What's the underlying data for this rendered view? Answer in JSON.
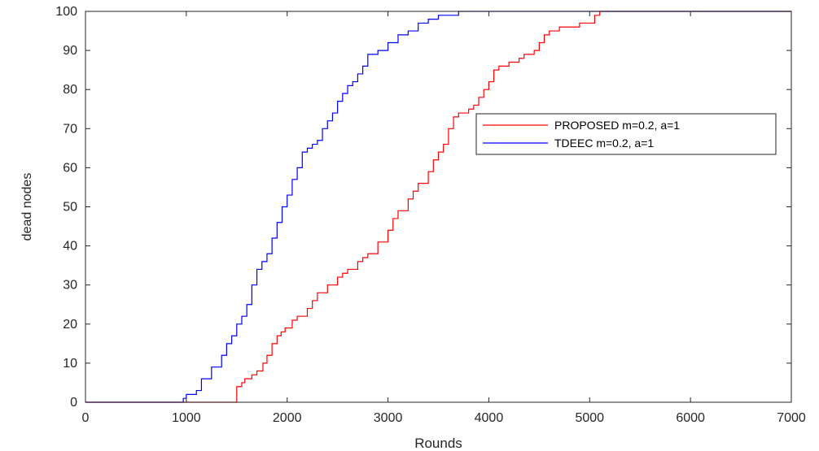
{
  "chart_data": {
    "type": "line",
    "xlabel": "Rounds",
    "ylabel": "dead nodes",
    "xlim": [
      0,
      7000
    ],
    "ylim": [
      0,
      100
    ],
    "xticks": [
      0,
      1000,
      2000,
      3000,
      4000,
      5000,
      6000,
      7000
    ],
    "yticks": [
      0,
      10,
      20,
      30,
      40,
      50,
      60,
      70,
      80,
      90,
      100
    ],
    "grid": false,
    "legend_position": "upper-right",
    "series": [
      {
        "name": "PROPOSED  m=0.2, a=1",
        "color": "#ff0000",
        "x": [
          0,
          1480,
          1500,
          1550,
          1580,
          1650,
          1700,
          1760,
          1800,
          1850,
          1900,
          1940,
          1980,
          2050,
          2100,
          2200,
          2250,
          2300,
          2400,
          2500,
          2550,
          2600,
          2700,
          2750,
          2800,
          2900,
          3000,
          3050,
          3100,
          3200,
          3250,
          3300,
          3400,
          3450,
          3500,
          3550,
          3600,
          3650,
          3700,
          3800,
          3850,
          3900,
          3950,
          4000,
          4050,
          4100,
          4200,
          4300,
          4350,
          4400,
          4450,
          4500,
          4550,
          4600,
          4700,
          4800,
          4900,
          5000,
          5050,
          5100,
          7000
        ],
        "y": [
          0,
          0,
          4,
          5,
          6,
          7,
          8,
          10,
          12,
          15,
          17,
          18,
          19,
          21,
          22,
          24,
          26,
          28,
          30,
          32,
          33,
          34,
          36,
          37,
          38,
          41,
          44,
          47,
          49,
          52,
          54,
          56,
          59,
          62,
          64,
          66,
          70,
          73,
          74,
          75,
          76,
          78,
          80,
          82,
          85,
          86,
          87,
          88,
          89,
          89,
          90,
          92,
          94,
          95,
          96,
          96,
          97,
          97,
          99,
          100,
          100
        ]
      },
      {
        "name": "TDEEC  m=0.2, a=1",
        "color": "#0000ff",
        "x": [
          0,
          950,
          970,
          1000,
          1100,
          1150,
          1250,
          1350,
          1400,
          1450,
          1500,
          1550,
          1600,
          1650,
          1700,
          1750,
          1800,
          1850,
          1900,
          1950,
          2000,
          2050,
          2100,
          2150,
          2200,
          2250,
          2300,
          2350,
          2400,
          2450,
          2500,
          2550,
          2600,
          2650,
          2700,
          2750,
          2800,
          2900,
          3000,
          3100,
          3200,
          3300,
          3400,
          3500,
          3600,
          3700,
          3800,
          7000
        ],
        "y": [
          0,
          0,
          1,
          2,
          3,
          6,
          9,
          12,
          15,
          17,
          20,
          22,
          25,
          30,
          34,
          36,
          38,
          42,
          46,
          50,
          53,
          57,
          60,
          64,
          65,
          66,
          67,
          70,
          72,
          74,
          77,
          79,
          81,
          82,
          84,
          86,
          89,
          90,
          92,
          94,
          95,
          97,
          98,
          99,
          99,
          100,
          100,
          100
        ]
      }
    ]
  }
}
